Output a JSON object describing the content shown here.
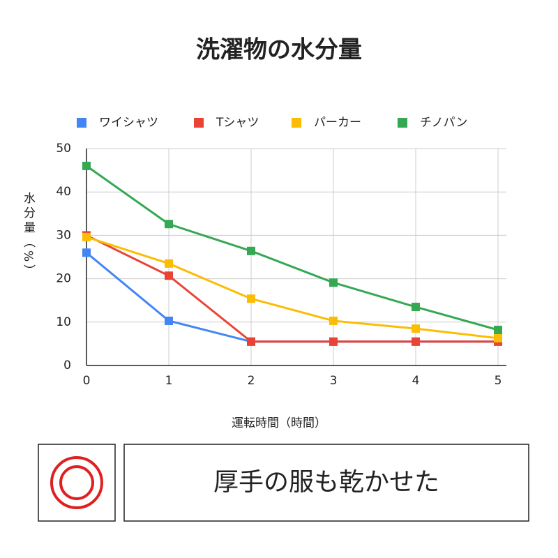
{
  "chart_data": {
    "type": "line",
    "title": "洗濯物の水分量",
    "x_label": "運転時間（時間）",
    "y_label": "水分量（%）",
    "x": [
      0,
      1,
      2,
      3,
      4,
      5
    ],
    "series": [
      {
        "name": "ワイシャツ",
        "color": "#4285f4",
        "values": [
          26,
          10.3,
          5.5,
          5.5,
          5.5,
          5.5
        ]
      },
      {
        "name": "Tシャツ",
        "color": "#ea4335",
        "values": [
          30,
          20.7,
          5.5,
          5.5,
          5.5,
          5.5
        ]
      },
      {
        "name": "パーカー",
        "color": "#fbbc04",
        "values": [
          29.6,
          23.5,
          15.4,
          10.3,
          8.5,
          6.3
        ]
      },
      {
        "name": "チノパン",
        "color": "#34a853",
        "values": [
          46,
          32.6,
          26.4,
          19.1,
          13.5,
          8.2
        ]
      }
    ],
    "xlim": [
      0,
      5
    ],
    "xticks": [
      0,
      1,
      2,
      3,
      4,
      5
    ],
    "ylim": [
      0,
      50
    ],
    "yticks": [
      0,
      10,
      20,
      30,
      40,
      50
    ],
    "grid": true,
    "legend": "top"
  },
  "caption": "厚手の服も乾かせた"
}
